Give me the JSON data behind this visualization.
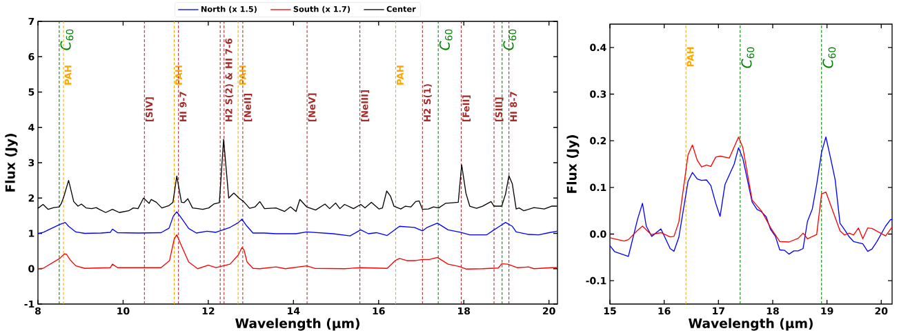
{
  "chart_data": [
    {
      "type": "line",
      "xlabel": "Wavelength (μm)",
      "ylabel": "Flux (Jy)",
      "xlim": [
        8,
        20.2
      ],
      "ylim": [
        -1,
        7
      ],
      "xticks": [
        8,
        10,
        12,
        14,
        16,
        18,
        20
      ],
      "yticks": [
        -1,
        0,
        1,
        2,
        3,
        4,
        5,
        6,
        7
      ],
      "legend": "top",
      "series": [
        {
          "name": "North (x 1.5)",
          "color": "#0000ff",
          "x": [
            8.0,
            8.13,
            8.51,
            8.64,
            8.72,
            8.89,
            9.1,
            9.48,
            9.7,
            9.75,
            9.87,
            10.35,
            10.89,
            11.08,
            11.18,
            11.26,
            11.37,
            11.54,
            11.72,
            11.97,
            12.18,
            12.51,
            12.7,
            12.79,
            12.89,
            13.05,
            13.32,
            13.59,
            13.91,
            14.06,
            14.31,
            14.93,
            15.33,
            15.58,
            15.76,
            15.95,
            16.2,
            16.49,
            16.84,
            17.03,
            17.14,
            17.38,
            17.63,
            17.92,
            18.14,
            18.54,
            18.71,
            18.84,
            18.98,
            19.14,
            19.23,
            19.52,
            19.76,
            20.0,
            20.19
          ],
          "values": [
            0.99,
            1.03,
            1.25,
            1.31,
            1.2,
            1.04,
            1.0,
            1.01,
            1.03,
            1.12,
            1.02,
            1.01,
            1.02,
            1.15,
            1.49,
            1.61,
            1.43,
            1.14,
            1.01,
            1.06,
            1.03,
            1.17,
            1.3,
            1.4,
            1.23,
            1.01,
            1.01,
            0.99,
            0.99,
            0.99,
            1.04,
            0.99,
            0.93,
            1.1,
            0.99,
            1.02,
            0.94,
            1.2,
            1.17,
            1.07,
            1.17,
            1.29,
            1.1,
            1.03,
            0.96,
            0.96,
            1.1,
            1.2,
            1.31,
            1.2,
            1.04,
            0.97,
            0.96,
            1.02,
            1.06
          ]
        },
        {
          "name": "South (x 1.7)",
          "color": "#ff0000",
          "x": [
            8.0,
            8.12,
            8.51,
            8.62,
            8.67,
            8.75,
            8.89,
            9.1,
            9.7,
            9.75,
            9.87,
            10.89,
            11.09,
            11.2,
            11.26,
            11.37,
            11.54,
            11.75,
            12.0,
            12.18,
            12.51,
            12.7,
            12.79,
            12.84,
            12.91,
            13.05,
            13.21,
            13.59,
            13.81,
            14.31,
            14.5,
            15.2,
            15.58,
            16.2,
            16.39,
            16.49,
            16.66,
            16.87,
            17.03,
            17.19,
            17.38,
            17.63,
            17.9,
            18.06,
            18.44,
            18.81,
            18.89,
            19.03,
            19.25,
            19.52,
            19.65,
            20.06,
            20.19
          ],
          "values": [
            0.0,
            0.01,
            0.29,
            0.42,
            0.41,
            0.26,
            0.08,
            0.01,
            0.03,
            0.13,
            0.03,
            0.03,
            0.23,
            0.84,
            0.96,
            0.65,
            0.19,
            0.0,
            0.1,
            0.03,
            0.13,
            0.38,
            0.6,
            0.53,
            0.19,
            0.01,
            0.0,
            0.05,
            0.0,
            0.08,
            0.01,
            0.0,
            0.03,
            0.01,
            0.23,
            0.29,
            0.23,
            0.23,
            0.26,
            0.26,
            0.32,
            0.13,
            0.06,
            -0.01,
            0.0,
            0.02,
            0.14,
            0.13,
            0.03,
            0.05,
            0.0,
            0.03,
            0.03
          ]
        },
        {
          "name": "Center",
          "color": "#000000",
          "x": [
            8.0,
            8.12,
            8.24,
            8.37,
            8.5,
            8.55,
            8.61,
            8.72,
            8.84,
            8.94,
            9.02,
            9.13,
            9.26,
            9.37,
            9.44,
            9.59,
            9.75,
            9.91,
            10.13,
            10.24,
            10.35,
            10.48,
            10.61,
            10.66,
            10.78,
            10.91,
            11.08,
            11.17,
            11.26,
            11.37,
            11.43,
            11.52,
            11.63,
            11.76,
            11.87,
            12.01,
            12.13,
            12.26,
            12.36,
            12.48,
            12.6,
            12.72,
            12.83,
            12.97,
            13.1,
            13.21,
            13.32,
            13.59,
            13.79,
            13.93,
            14.06,
            14.15,
            14.31,
            14.52,
            14.74,
            14.85,
            14.99,
            15.09,
            15.2,
            15.41,
            15.58,
            15.68,
            15.83,
            16.01,
            16.09,
            16.19,
            16.28,
            16.36,
            16.52,
            16.63,
            16.76,
            16.87,
            16.95,
            17.03,
            17.17,
            17.29,
            17.41,
            17.57,
            17.68,
            17.87,
            17.95,
            18.05,
            18.14,
            18.3,
            18.44,
            18.64,
            18.71,
            18.89,
            18.98,
            19.06,
            19.14,
            19.23,
            19.3,
            19.41,
            19.65,
            19.89,
            20.06,
            20.19
          ],
          "values": [
            1.71,
            1.82,
            1.68,
            1.73,
            1.75,
            1.85,
            2.05,
            2.5,
            1.9,
            1.77,
            1.83,
            1.72,
            1.7,
            1.73,
            1.68,
            1.59,
            1.68,
            1.59,
            1.64,
            1.72,
            1.7,
            2.0,
            1.85,
            1.96,
            1.88,
            1.72,
            1.79,
            1.88,
            2.62,
            1.88,
            1.87,
            1.98,
            1.72,
            1.7,
            1.68,
            1.72,
            1.83,
            1.87,
            3.66,
            2.0,
            2.14,
            2.0,
            1.9,
            1.71,
            1.75,
            1.9,
            1.7,
            1.72,
            1.62,
            1.75,
            1.62,
            1.96,
            1.75,
            1.66,
            1.83,
            1.7,
            1.86,
            1.7,
            1.82,
            1.7,
            1.82,
            1.72,
            1.88,
            1.69,
            1.72,
            2.2,
            2.05,
            1.77,
            1.69,
            1.77,
            1.75,
            1.9,
            1.92,
            1.68,
            1.69,
            1.75,
            1.72,
            1.85,
            1.86,
            1.88,
            2.94,
            2.14,
            1.77,
            1.71,
            1.77,
            1.9,
            1.77,
            1.77,
            2.11,
            2.63,
            2.4,
            1.69,
            1.72,
            1.64,
            1.73,
            1.69,
            1.77,
            1.77
          ]
        }
      ],
      "ref_lines": [
        {
          "axis": "x",
          "value": 8.5,
          "label": "*C*$_{60}$",
          "color": "#008000",
          "line_style": "dashed"
        },
        {
          "axis": "x",
          "value": 8.6,
          "label": "PAH",
          "color": "#ffa500",
          "line_style": "dashed"
        },
        {
          "axis": "x",
          "value": 10.5,
          "label": "[SIV]",
          "color": "#a52a2a",
          "line_style": "dashed"
        },
        {
          "axis": "x",
          "value": 11.2,
          "label": "PAH",
          "color": "#ffa500",
          "line_style": "dashed"
        },
        {
          "axis": "x",
          "value": 11.3,
          "label": "HI 9-7",
          "color": "#a52a2a",
          "line_style": "dashed"
        },
        {
          "axis": "x",
          "value": 12.28,
          "label": null,
          "color": "#a52a2a",
          "line_style": "dashed"
        },
        {
          "axis": "x",
          "value": 12.37,
          "label": "H2 S(2) & HI 7-6",
          "color": "#a52a2a",
          "line_style": "dashed"
        },
        {
          "axis": "x",
          "value": 12.7,
          "label": "PAH",
          "color": "#ffa500",
          "line_style": "dashed"
        },
        {
          "axis": "x",
          "value": 12.81,
          "label": "[NeII]",
          "color": "#a52a2a",
          "line_style": "dashed"
        },
        {
          "axis": "x",
          "value": 14.32,
          "label": "[NeV]",
          "color": "#a52a2a",
          "line_style": "dashed"
        },
        {
          "axis": "x",
          "value": 15.56,
          "label": "[NeIII]",
          "color": "#a52a2a",
          "line_style": "dashed"
        },
        {
          "axis": "x",
          "value": 16.4,
          "label": "PAH",
          "color": "#ffa500",
          "line_style": "dashed"
        },
        {
          "axis": "x",
          "value": 17.03,
          "label": "H2 S(1)",
          "color": "#a52a2a",
          "line_style": "dashed"
        },
        {
          "axis": "x",
          "value": 17.4,
          "label": "*C*$_{60}$",
          "color": "#008000",
          "line_style": "dashed"
        },
        {
          "axis": "x",
          "value": 17.94,
          "label": "[FeII]",
          "color": "#a52a2a",
          "line_style": "dashed"
        },
        {
          "axis": "x",
          "value": 18.71,
          "label": "[SIII]",
          "color": "#a52a2a",
          "line_style": "dashed"
        },
        {
          "axis": "x",
          "value": 18.9,
          "label": "*C*$_{60}$",
          "color": "#008000",
          "line_style": "dashed"
        },
        {
          "axis": "x",
          "value": 19.06,
          "label": "HI 8-7",
          "color": "#a52a2a",
          "line_style": "dashed"
        }
      ]
    },
    {
      "type": "line",
      "xlabel": "Wavelength (μm)",
      "ylabel": "Flux (Jy)",
      "xlim": [
        15,
        20.2
      ],
      "ylim": [
        -0.15,
        0.45
      ],
      "xticks": [
        15,
        16,
        17,
        18,
        19,
        20
      ],
      "yticks": [
        -0.1,
        {
          "value": 0,
          "label": "0.0"
        },
        0.1,
        0.2,
        0.3,
        0.4
      ],
      "series": [
        {
          "color": "#0000ff",
          "x": [
            15.0,
            15.09,
            15.34,
            15.51,
            15.6,
            15.67,
            15.77,
            15.94,
            16.11,
            16.18,
            16.27,
            16.44,
            16.52,
            16.61,
            16.69,
            16.78,
            16.86,
            16.95,
            17.03,
            17.12,
            17.29,
            17.37,
            17.45,
            17.62,
            17.71,
            17.79,
            17.88,
            17.96,
            18.05,
            18.13,
            18.22,
            18.3,
            18.39,
            18.47,
            18.56,
            18.64,
            18.73,
            18.81,
            18.9,
            18.98,
            19.07,
            19.15,
            19.24,
            19.32,
            19.41,
            19.49,
            19.66,
            19.75,
            19.83,
            19.92,
            20.08,
            20.17,
            20.2
          ],
          "values": [
            -0.025,
            -0.038,
            -0.048,
            0.032,
            0.066,
            0.017,
            -0.005,
            0.011,
            -0.031,
            -0.037,
            -0.007,
            0.113,
            0.132,
            0.118,
            0.115,
            0.116,
            0.104,
            0.066,
            0.038,
            0.106,
            0.15,
            0.185,
            0.162,
            0.069,
            0.053,
            0.048,
            0.037,
            0.01,
            -0.005,
            -0.034,
            -0.035,
            -0.043,
            -0.036,
            -0.036,
            -0.031,
            0.027,
            0.054,
            0.106,
            0.175,
            0.208,
            0.161,
            0.117,
            0.023,
            0.01,
            -0.006,
            -0.016,
            -0.021,
            -0.037,
            -0.032,
            -0.016,
            0.017,
            0.031,
            0.031
          ]
        },
        {
          "color": "#ff0000",
          "x": [
            15.0,
            15.26,
            15.34,
            15.5,
            15.6,
            15.76,
            15.94,
            16.11,
            16.18,
            16.27,
            16.44,
            16.52,
            16.61,
            16.69,
            16.78,
            16.86,
            16.95,
            17.03,
            17.2,
            17.37,
            17.45,
            17.62,
            17.79,
            17.96,
            18.13,
            18.3,
            18.47,
            18.56,
            18.64,
            18.81,
            18.9,
            18.98,
            19.24,
            19.32,
            19.41,
            19.49,
            19.58,
            19.66,
            19.75,
            19.83,
            20.08,
            20.2
          ],
          "values": [
            -0.008,
            -0.015,
            -0.012,
            0.007,
            0.017,
            -0.001,
            0.003,
            -0.006,
            -0.005,
            0.026,
            0.17,
            0.191,
            0.158,
            0.144,
            0.148,
            0.145,
            0.165,
            0.167,
            0.163,
            0.208,
            0.185,
            0.073,
            0.05,
            0.014,
            -0.016,
            -0.017,
            -0.009,
            0.002,
            -0.01,
            -0.001,
            0.086,
            0.09,
            0.007,
            -0.002,
            0.002,
            -0.002,
            0.013,
            -0.01,
            0.013,
            0.012,
            -0.004,
            0.015
          ]
        }
      ],
      "ref_lines": [
        {
          "axis": "x",
          "value": 16.4,
          "label": "PAH",
          "color": "#ffa500",
          "line_style": "dashed"
        },
        {
          "axis": "x",
          "value": 17.4,
          "label": "*C*$_{60}$",
          "color": "#008000",
          "line_style": "dashed"
        },
        {
          "axis": "x",
          "value": 18.9,
          "label": "*C*$_{60}$",
          "color": "#008000",
          "line_style": "dashed"
        }
      ]
    }
  ]
}
